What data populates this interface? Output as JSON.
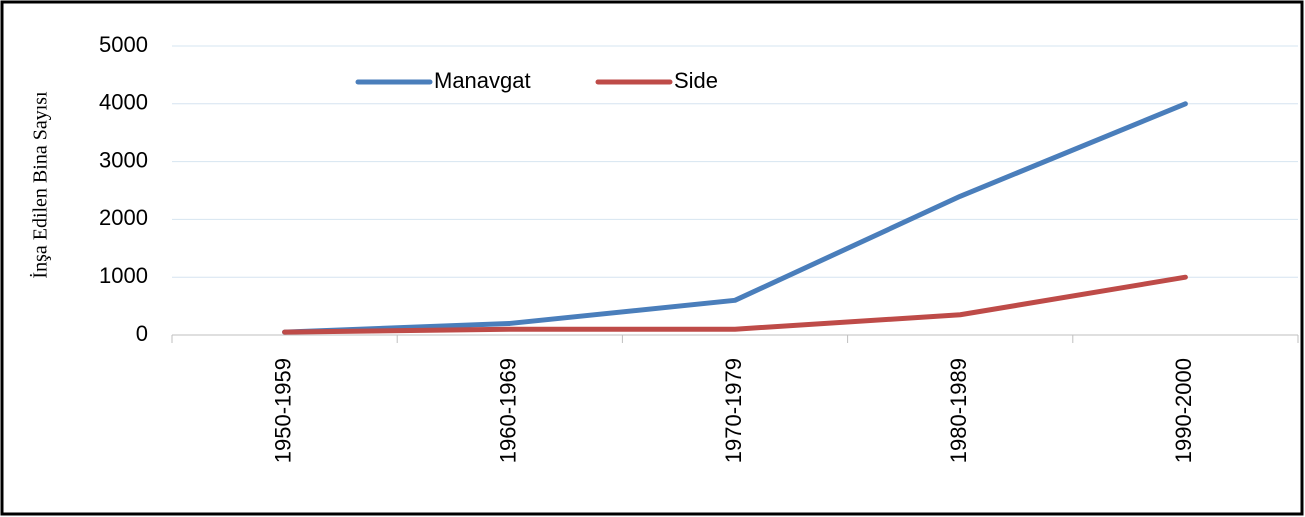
{
  "chart_data": {
    "type": "line",
    "y_label": "İnşa Edilen Bina Sayısı",
    "categories": [
      "1950-1959",
      "1960-1969",
      "1970-1979",
      "1980-1989",
      "1990-2000"
    ],
    "series": [
      {
        "name": "Manavgat",
        "color": "#4a7ebb",
        "values": [
          50,
          200,
          600,
          2400,
          4000
        ]
      },
      {
        "name": "Side",
        "color": "#be4b48",
        "values": [
          50,
          100,
          100,
          350,
          1000
        ]
      }
    ],
    "ylim": [
      0,
      5000
    ],
    "yticks": [
      0,
      1000,
      2000,
      3000,
      4000,
      5000
    ],
    "grid": true,
    "legend": "top-left"
  }
}
